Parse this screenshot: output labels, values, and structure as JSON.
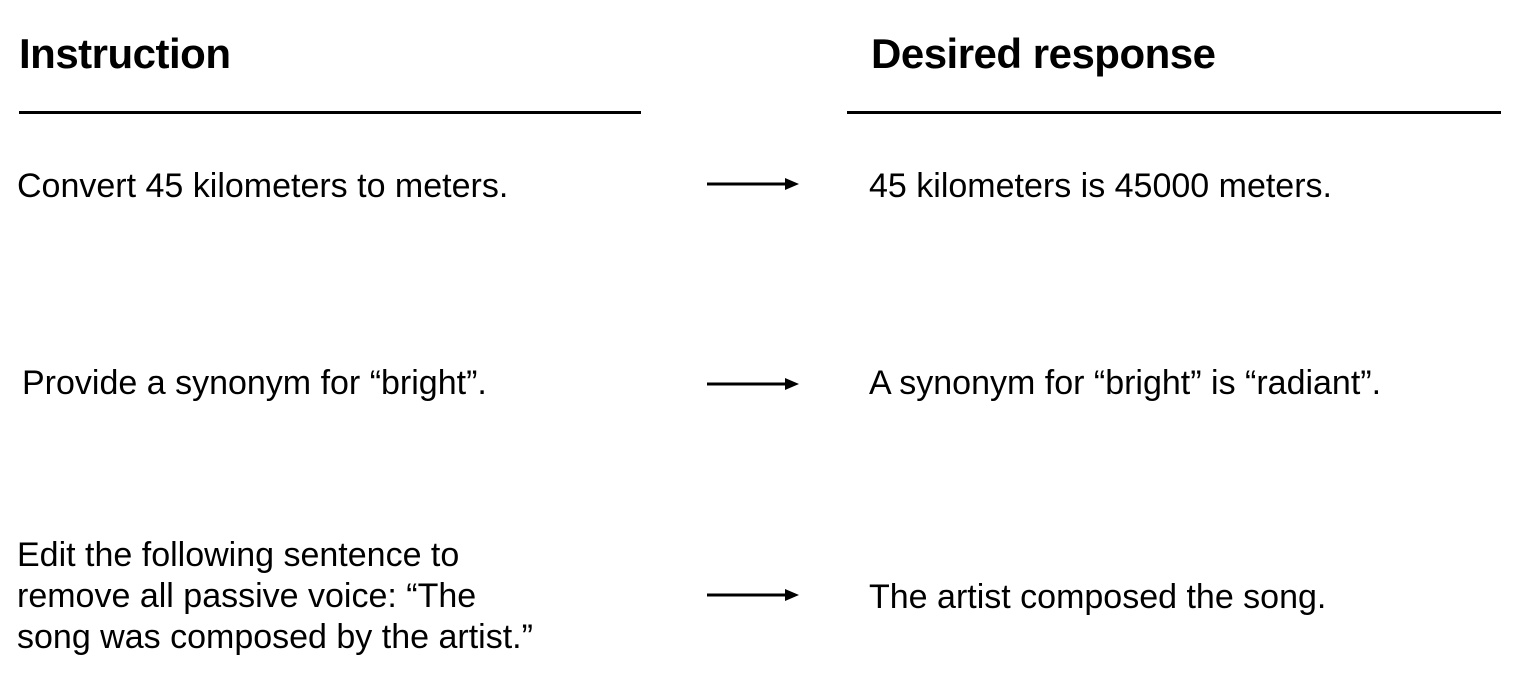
{
  "headers": {
    "instruction": "Instruction",
    "response": "Desired response"
  },
  "rows": [
    {
      "instruction": "Convert 45 kilometers to meters.",
      "response": "45 kilometers is 45000 meters."
    },
    {
      "instruction": "Provide a synonym for “bright”.",
      "response": "A synonym for “bright” is “radiant”."
    },
    {
      "instruction_lines": [
        "Edit the following sentence to",
        "remove all passive voice: “The",
        "song was composed by the artist.”"
      ],
      "response": "The artist composed the song."
    }
  ],
  "colors": {
    "text": "#000000",
    "background": "#ffffff"
  },
  "icons": {
    "arrow": "arrow-right-icon"
  }
}
